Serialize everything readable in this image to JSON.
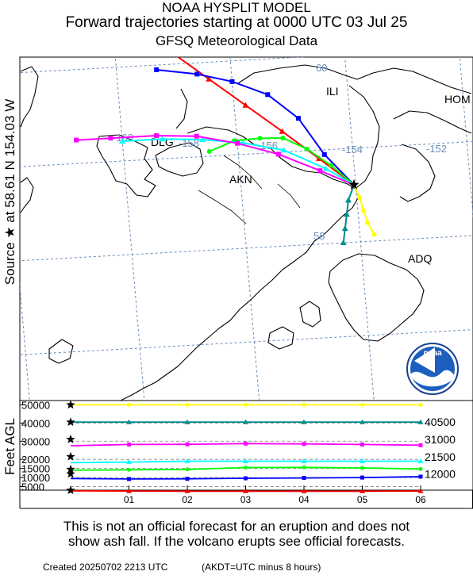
{
  "header": {
    "model": "NOAA HYSPLIT MODEL",
    "title": "Forward trajectories starting at 0000 UTC 03 Jul 25",
    "data_source": "GFSQ Meteorological Data"
  },
  "source_label": {
    "prefix": "Source",
    "star": "★",
    "at": "at",
    "lat": "58.61 N",
    "lon": "154.03 W"
  },
  "map": {
    "lat_labels": [
      "60",
      "58"
    ],
    "lon_labels": [
      "-160",
      "-158",
      "-156",
      "-154",
      "-152"
    ],
    "places": [
      "ILI",
      "HOM",
      "DLG",
      "AKN",
      "ADQ"
    ],
    "logo_text": "noaa",
    "colors": {
      "land": "#000000",
      "grid": "#6a8db7"
    }
  },
  "chart_data": {
    "type": "line",
    "x_ticks": [
      "01",
      "02",
      "03",
      "04",
      "05",
      "06"
    ],
    "ylabel": "Feet AGL",
    "y_ticks": [
      5000,
      10000,
      15000,
      20000,
      30000,
      40000,
      50000
    ],
    "y_tick_labels": [
      "5000",
      "10000",
      "15000",
      "20000",
      "30000",
      "40000",
      "50000"
    ],
    "ylim": [
      3500,
      51500
    ],
    "right_labels": [
      "40500",
      "31000",
      "21500",
      "12000"
    ],
    "series": [
      {
        "color": "#ff0000",
        "marker": "triangle",
        "start_height": 3000,
        "heights": [
          2700,
          2600,
          2500,
          2500,
          2500,
          2500,
          2600
        ],
        "track": [
          [
            -154.03,
            58.61
          ],
          [
            -154.6,
            58.91
          ],
          [
            -155.2,
            59.22
          ],
          [
            -155.8,
            59.52
          ],
          [
            -156.4,
            59.82
          ],
          [
            -157.0,
            60.12
          ],
          [
            -157.5,
            60.28
          ]
        ]
      },
      {
        "color": "#0000ff",
        "marker": "square",
        "start_height": 12000,
        "heights": [
          9500,
          9200,
          9300,
          9600,
          9800,
          10000,
          10500
        ],
        "track": [
          [
            -154.03,
            58.61
          ],
          [
            -154.5,
            58.95
          ],
          [
            -154.9,
            59.35
          ],
          [
            -155.4,
            59.62
          ],
          [
            -156.0,
            59.78
          ],
          [
            -156.6,
            59.88
          ],
          [
            -157.3,
            59.95
          ]
        ]
      },
      {
        "color": "#00ff00",
        "marker": "circle",
        "start_height": 14500,
        "heights": [
          14000,
          14300,
          14500,
          15500,
          15600,
          15300,
          14700
        ],
        "track": [
          [
            -154.03,
            58.61
          ],
          [
            -154.4,
            58.83
          ],
          [
            -154.8,
            59.02
          ],
          [
            -155.2,
            59.15
          ],
          [
            -155.6,
            59.16
          ],
          [
            -156.05,
            59.15
          ],
          [
            -156.5,
            59.05
          ]
        ]
      },
      {
        "color": "#00ffff",
        "marker": "triangle",
        "start_height": 21500,
        "heights": [
          18200,
          18500,
          19000,
          19000,
          19000,
          19000,
          19000
        ],
        "track": [
          [
            -154.03,
            58.61
          ],
          [
            -154.5,
            58.8
          ],
          [
            -155.2,
            59.02
          ],
          [
            -155.9,
            59.12
          ],
          [
            -156.6,
            59.18
          ],
          [
            -157.3,
            59.21
          ],
          [
            -158.0,
            59.21
          ]
        ]
      },
      {
        "color": "#ff00ff",
        "marker": "square",
        "start_height": 31000,
        "heights": [
          27500,
          28200,
          28300,
          28700,
          28500,
          28200,
          27800
        ],
        "track": [
          [
            -154.03,
            58.61
          ],
          [
            -154.6,
            58.78
          ],
          [
            -155.3,
            58.98
          ],
          [
            -156.0,
            59.12
          ],
          [
            -156.7,
            59.22
          ],
          [
            -157.4,
            59.25
          ],
          [
            -158.2,
            59.25
          ],
          [
            -158.8,
            59.25
          ]
        ]
      },
      {
        "color": "#008b8b",
        "marker": "triangle",
        "start_height": 40500,
        "heights": [
          40500,
          40500,
          40500,
          40500,
          40500,
          40500,
          40500
        ],
        "track": [
          [
            -154.03,
            58.61
          ],
          [
            -154.15,
            58.45
          ],
          [
            -154.2,
            58.3
          ],
          [
            -154.25,
            58.15
          ],
          [
            -154.3,
            58.0
          ]
        ]
      },
      {
        "color": "#ffff00",
        "marker": "circle",
        "start_height": 50000,
        "heights": [
          50000,
          50000,
          50000,
          50000,
          50000,
          50000,
          50000
        ],
        "track": [
          [
            -154.03,
            58.61
          ],
          [
            -153.95,
            58.47
          ],
          [
            -153.9,
            58.33
          ],
          [
            -153.85,
            58.2
          ],
          [
            -153.75,
            58.07
          ]
        ]
      }
    ]
  },
  "disclaimer": {
    "line1": "This is not an official forecast for an eruption and does not",
    "line2": "show ash fall. If the volcano erupts see official forecasts."
  },
  "footer": {
    "created": "Created 20250702 2213 UTC",
    "timezone_note": "(AKDT=UTC minus 8 hours)"
  }
}
